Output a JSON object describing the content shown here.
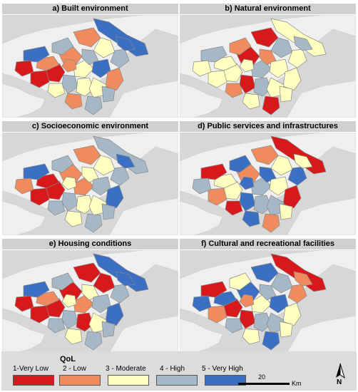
{
  "panels": [
    {
      "title": "a) Built environment"
    },
    {
      "title": "b) Natural environment"
    },
    {
      "title": "c) Socioeconomic environment"
    },
    {
      "title": "d) Public services and infrastructures"
    },
    {
      "title": "e) Housing conditions"
    },
    {
      "title": "f) Cultural and recreational facilities"
    }
  ],
  "legend": {
    "title": "QoL",
    "items": [
      {
        "label": "1-Very Low",
        "color": "#d7191c"
      },
      {
        "label": "2 - Low",
        "color": "#f08b5e"
      },
      {
        "label": "3 - Moderate",
        "color": "#ffffbf"
      },
      {
        "label": "4 - High",
        "color": "#a6b8c6"
      },
      {
        "label": "5 - Very High",
        "color": "#3a6fc4"
      }
    ]
  },
  "scale_bar": {
    "value": "20",
    "unit": "Km"
  },
  "north_arrow": {
    "label": "N"
  },
  "colors": {
    "land": "#efefef",
    "water": "#d7d7d7",
    "border": "#888888"
  },
  "zone_classes": {
    "a": [
      5,
      2,
      3,
      4,
      1,
      2,
      3,
      4,
      5,
      2,
      4,
      3,
      1,
      2,
      4,
      5,
      3,
      4,
      2,
      5,
      1,
      3,
      4,
      2
    ],
    "b": [
      3,
      1,
      4,
      3,
      3,
      1,
      4,
      2,
      3,
      3,
      1,
      4,
      3,
      3,
      2,
      4,
      3,
      1,
      3,
      4,
      3,
      2,
      3,
      3
    ],
    "c": [
      4,
      2,
      3,
      4,
      1,
      2,
      2,
      3,
      4,
      5,
      4,
      3,
      1,
      1,
      4,
      5,
      3,
      4,
      3,
      5,
      2,
      4,
      4,
      3
    ],
    "d": [
      1,
      2,
      3,
      5,
      3,
      2,
      4,
      5,
      3,
      1,
      5,
      4,
      2,
      3,
      5,
      1,
      4,
      2,
      5,
      3,
      4,
      1,
      3,
      5
    ],
    "e": [
      5,
      1,
      1,
      4,
      1,
      1,
      2,
      3,
      4,
      5,
      4,
      1,
      1,
      2,
      4,
      5,
      3,
      4,
      3,
      5,
      1,
      4,
      4,
      3
    ],
    "f": [
      1,
      5,
      4,
      2,
      1,
      5,
      3,
      4,
      5,
      3,
      1,
      4,
      2,
      5,
      3,
      1,
      4,
      5,
      3,
      2,
      5,
      4,
      3,
      2
    ]
  }
}
